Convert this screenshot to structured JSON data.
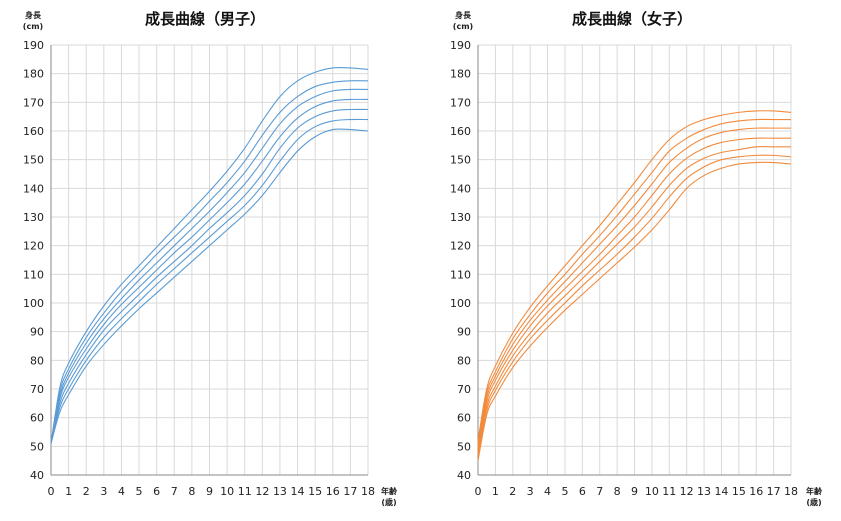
{
  "chart_data": [
    {
      "type": "line",
      "title": "成長曲線（男子）",
      "ylabel": "身長",
      "ylabel_unit": "(cm)",
      "xlabel": "年齢",
      "xlabel_unit": "(歳)",
      "xlim": [
        0,
        18
      ],
      "ylim": [
        40,
        190
      ],
      "xticks": [
        "0",
        "1",
        "2",
        "3",
        "4",
        "5",
        "6",
        "7",
        "8",
        "9",
        "10",
        "11",
        "12",
        "13",
        "14",
        "15",
        "16",
        "17",
        "18"
      ],
      "yticks": [
        "40",
        "50",
        "60",
        "70",
        "80",
        "90",
        "100",
        "110",
        "120",
        "130",
        "140",
        "150",
        "160",
        "170",
        "180",
        "190"
      ],
      "grid": true,
      "color": "#5b9bd5",
      "x": [
        0,
        0.5,
        1,
        2,
        3,
        4,
        5,
        6,
        7,
        8,
        9,
        10,
        11,
        12,
        13,
        14,
        15,
        16,
        17,
        18
      ],
      "series": [
        {
          "values": [
            51,
            62,
            68,
            78,
            85.5,
            92,
            98,
            103.5,
            109,
            114.5,
            120,
            125.5,
            131,
            137.5,
            145.5,
            153,
            158,
            160.5,
            160.5,
            160
          ]
        },
        {
          "values": [
            51,
            63.5,
            70,
            80,
            88,
            94.5,
            100.5,
            106.5,
            112,
            117.5,
            123,
            128.5,
            134,
            141,
            149.5,
            157,
            161.5,
            163.5,
            164,
            164
          ]
        },
        {
          "values": [
            51,
            65,
            72,
            82,
            90.5,
            97,
            103,
            109,
            114.5,
            120,
            126,
            131.5,
            137.5,
            145,
            154,
            161,
            165,
            167,
            167.5,
            167.5
          ]
        },
        {
          "values": [
            51,
            66.5,
            74,
            84,
            92.5,
            99.5,
            105.5,
            111.5,
            117.5,
            123,
            129,
            135,
            141.5,
            149.5,
            158,
            164.5,
            168.5,
            170.5,
            171,
            171
          ]
        },
        {
          "values": [
            51,
            67.5,
            75.5,
            86,
            94.5,
            101.5,
            108,
            114,
            120,
            126,
            132,
            138.5,
            145.5,
            154,
            162.5,
            168.5,
            172,
            174,
            174.5,
            174.5
          ]
        },
        {
          "values": [
            51,
            69,
            77,
            88,
            96.5,
            104,
            110.5,
            117,
            123,
            129,
            135.5,
            142,
            149.5,
            158.5,
            166.5,
            172,
            175.5,
            177,
            177.5,
            177.5
          ]
        },
        {
          "values": [
            51,
            70.5,
            79,
            90,
            99,
            106.5,
            113,
            119.5,
            126,
            132.5,
            139,
            146,
            154,
            163.5,
            172,
            177.5,
            180.5,
            182,
            182,
            181.5
          ]
        }
      ]
    },
    {
      "type": "line",
      "title": "成長曲線（女子）",
      "ylabel": "身長",
      "ylabel_unit": "(cm)",
      "xlabel": "年齢",
      "xlabel_unit": "(歳)",
      "xlim": [
        0,
        18
      ],
      "ylim": [
        40,
        190
      ],
      "xticks": [
        "0",
        "1",
        "2",
        "3",
        "4",
        "5",
        "6",
        "7",
        "8",
        "9",
        "10",
        "11",
        "12",
        "13",
        "14",
        "15",
        "16",
        "17",
        "18"
      ],
      "yticks": [
        "40",
        "50",
        "60",
        "70",
        "80",
        "90",
        "100",
        "110",
        "120",
        "130",
        "140",
        "150",
        "160",
        "170",
        "180",
        "190"
      ],
      "grid": true,
      "color": "#f28a3c",
      "x": [
        0,
        0.5,
        1,
        2,
        3,
        4,
        5,
        6,
        7,
        8,
        9,
        10,
        11,
        12,
        13,
        14,
        15,
        16,
        17,
        18
      ],
      "series": [
        {
          "values": [
            45,
            61,
            67.5,
            77.5,
            85,
            91.5,
            97.5,
            103,
            108.5,
            114,
            119.5,
            125.5,
            132.5,
            140,
            144.5,
            147,
            148.5,
            149,
            149,
            148.5
          ]
        },
        {
          "values": [
            47,
            62.5,
            69.5,
            79.5,
            87.5,
            94,
            100,
            106,
            111.5,
            117,
            123,
            129.5,
            137,
            143.5,
            147.5,
            150,
            151,
            151.5,
            151.5,
            151
          ]
        },
        {
          "values": [
            48,
            64,
            71,
            81.5,
            89.5,
            96.5,
            102.5,
            108.5,
            114.5,
            120.5,
            126.5,
            133.5,
            141,
            147,
            150.5,
            152.5,
            153.5,
            154.5,
            154.5,
            154.5
          ]
        },
        {
          "values": [
            49,
            65.5,
            73,
            83.5,
            92,
            99,
            105,
            111,
            117,
            123.5,
            130,
            137.5,
            145,
            150.5,
            154,
            156,
            157,
            157.5,
            157.5,
            157.5
          ]
        },
        {
          "values": [
            50,
            67,
            74.5,
            85.5,
            94,
            101,
            107.5,
            114,
            120.5,
            127,
            134,
            141.5,
            149,
            154,
            157.5,
            159.5,
            160.5,
            161,
            161,
            161
          ]
        },
        {
          "values": [
            51,
            68.5,
            76,
            87.5,
            96,
            103.5,
            110,
            117,
            123.5,
            130.5,
            138,
            145.5,
            153,
            157.5,
            160.5,
            162.5,
            163.5,
            164,
            164,
            164
          ]
        },
        {
          "values": [
            52,
            70,
            78,
            89.5,
            98.5,
            106,
            113,
            120,
            127,
            134.5,
            142,
            150,
            157,
            161.5,
            164,
            165.5,
            166.5,
            167,
            167,
            166.5
          ]
        }
      ]
    }
  ]
}
